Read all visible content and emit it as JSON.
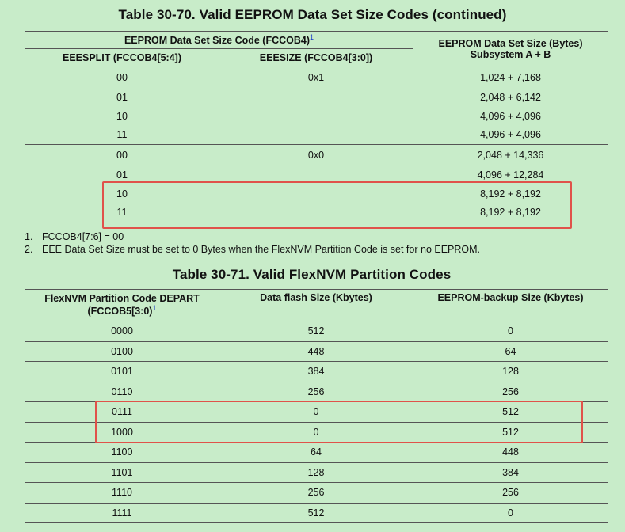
{
  "table1": {
    "title": "Table 30-70.   Valid EEPROM Data Set Size Codes (continued)",
    "header": {
      "group": "EEPROM Data Set Size Code (FCCOB4)",
      "group_sup": "1",
      "col1": "EEESPLIT (FCCOB4[5:4])",
      "col2": "EEESIZE (FCCOB4[3:0])",
      "col3_line1": "EEPROM Data Set Size (Bytes)",
      "col3_line2": "Subsystem A + B"
    },
    "groups": [
      {
        "eeesize": "0x1",
        "rows": [
          {
            "split": "00",
            "size": "1,024 + 7,168"
          },
          {
            "split": "01",
            "size": "2,048 + 6,142"
          },
          {
            "split": "10",
            "size": "4,096 + 4,096"
          },
          {
            "split": "11",
            "size": "4,096 + 4,096"
          }
        ]
      },
      {
        "eeesize": "0x0",
        "rows": [
          {
            "split": "00",
            "size": "2,048 + 14,336"
          },
          {
            "split": "01",
            "size": "4,096 + 12,284"
          },
          {
            "split": "10",
            "size": "8,192 + 8,192"
          },
          {
            "split": "11",
            "size": "8,192 + 8,192"
          }
        ]
      }
    ]
  },
  "footnotes": [
    {
      "num": "1.",
      "text": "FCCOB4[7:6] = 00"
    },
    {
      "num": "2.",
      "text": "EEE Data Set Size must be set to 0 Bytes when the FlexNVM Partition Code is set for no EEPROM."
    }
  ],
  "table2": {
    "title": "Table 30-71.   Valid FlexNVM Partition Codes",
    "header": {
      "col1_line1": "FlexNVM Partition Code DEPART",
      "col1_line2": "(FCCOB5[3:0)",
      "col1_sup": "1",
      "col2": "Data flash Size (Kbytes)",
      "col3": "EEPROM-backup Size (Kbytes)"
    },
    "rows": [
      {
        "code": "0000",
        "flash": "512",
        "backup": "0"
      },
      {
        "code": "0100",
        "flash": "448",
        "backup": "64"
      },
      {
        "code": "0101",
        "flash": "384",
        "backup": "128"
      },
      {
        "code": "0110",
        "flash": "256",
        "backup": "256"
      },
      {
        "code": "0111",
        "flash": "0",
        "backup": "512"
      },
      {
        "code": "1000",
        "flash": "0",
        "backup": "512"
      },
      {
        "code": "1100",
        "flash": "64",
        "backup": "448"
      },
      {
        "code": "1101",
        "flash": "128",
        "backup": "384"
      },
      {
        "code": "1110",
        "flash": "256",
        "backup": "256"
      },
      {
        "code": "1111",
        "flash": "512",
        "backup": "0"
      }
    ]
  },
  "colors": {
    "background": "#c8ecc9",
    "highlight": "#e0524a",
    "footnote_ref": "#1a3cc8"
  }
}
